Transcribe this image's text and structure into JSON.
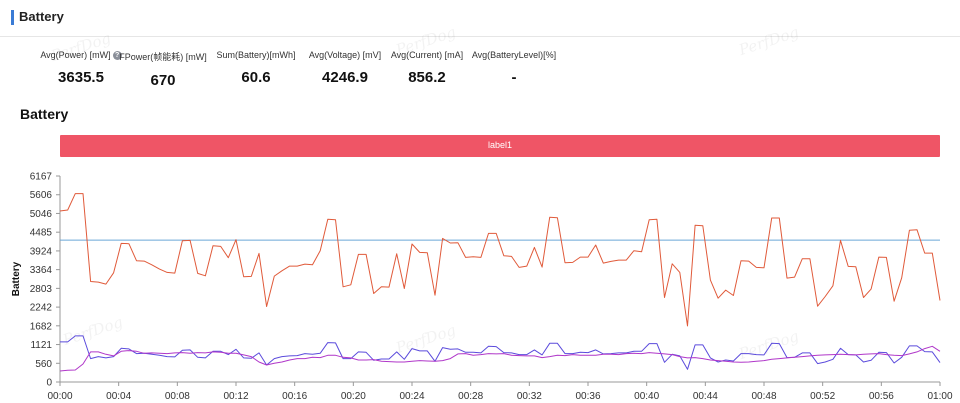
{
  "header": {
    "title": "Battery"
  },
  "stats": [
    {
      "label": "Avg(Power) [mW]",
      "value": "3635.5",
      "help": true
    },
    {
      "label": "FPower(帧能耗) [mW]",
      "value": "670",
      "help": false
    },
    {
      "label": "Sum(Battery)[mWh]",
      "value": "60.6",
      "help": false
    },
    {
      "label": "Avg(Voltage) [mV]",
      "value": "4246.9",
      "help": false
    },
    {
      "label": "Avg(Current) [mA]",
      "value": "856.2",
      "help": false
    },
    {
      "label": "Avg(BatteryLevel)[%]",
      "value": "-",
      "help": false
    }
  ],
  "help_glyph": "?",
  "watermark": "PerfDog",
  "chart_data": {
    "type": "line",
    "title": "Battery",
    "band_label": "label1",
    "xlabel": "",
    "ylabel": "Battery",
    "ylim": [
      0,
      6167
    ],
    "yticks": [
      0,
      560,
      1121,
      1682,
      2242,
      2803,
      3364,
      3924,
      4485,
      5046,
      5606,
      6167
    ],
    "xlim_seconds": [
      0,
      3600
    ],
    "xticks": [
      "00:00",
      "00:04",
      "00:08",
      "00:12",
      "00:16",
      "00:20",
      "00:24",
      "00:28",
      "00:32",
      "00:36",
      "00:40",
      "00:44",
      "00:48",
      "00:52",
      "00:56",
      "01:00"
    ],
    "grid": false,
    "series": [
      {
        "color": "#e05a3a",
        "values": [
          5120,
          5150,
          5640,
          5640,
          3010,
          2990,
          2930,
          3270,
          4150,
          4140,
          3630,
          3620,
          3510,
          3380,
          3280,
          3260,
          4230,
          4240,
          3250,
          3180,
          4080,
          4060,
          3720,
          4260,
          3150,
          3160,
          3850,
          2260,
          3170,
          3330,
          3470,
          3470,
          3530,
          3510,
          3930,
          4870,
          4860,
          2850,
          2910,
          3820,
          3820,
          2650,
          2850,
          2840,
          3840,
          2800,
          4130,
          3880,
          3870,
          2600,
          4300,
          4160,
          4170,
          3730,
          3750,
          3730,
          4450,
          4450,
          3780,
          3760,
          3430,
          3470,
          4030,
          3440,
          4930,
          4920,
          3570,
          3580,
          3740,
          3740,
          4100,
          3560,
          3610,
          3650,
          3650,
          3930,
          3900,
          4860,
          4870,
          2530,
          3540,
          3280,
          1680,
          4690,
          4680,
          3050,
          2510,
          2750,
          2590,
          3630,
          3620,
          3430,
          3420,
          4910,
          4910,
          3110,
          3140,
          3690,
          3690,
          2270,
          2560,
          2880,
          4240,
          3460,
          3450,
          2530,
          2780,
          3740,
          3730,
          2420,
          3120,
          4540,
          4560,
          3860,
          3860,
          2440
        ]
      },
      {
        "color": "#5b4bdc",
        "values": [
          1200,
          1200,
          1380,
          1380,
          700,
          760,
          720,
          760,
          1010,
          990,
          850,
          860,
          830,
          800,
          760,
          750,
          950,
          960,
          740,
          720,
          920,
          920,
          820,
          980,
          720,
          710,
          870,
          510,
          700,
          760,
          780,
          790,
          850,
          830,
          860,
          1180,
          1170,
          700,
          700,
          900,
          890,
          650,
          690,
          690,
          900,
          680,
          1000,
          930,
          930,
          620,
          1030,
          980,
          990,
          890,
          890,
          870,
          1070,
          1060,
          880,
          870,
          820,
          820,
          960,
          810,
          1160,
          1160,
          850,
          850,
          890,
          880,
          960,
          840,
          850,
          870,
          870,
          920,
          920,
          1150,
          1150,
          590,
          830,
          780,
          380,
          1110,
          1110,
          720,
          600,
          660,
          630,
          850,
          850,
          820,
          810,
          1160,
          1150,
          730,
          740,
          870,
          870,
          550,
          600,
          680,
          1010,
          820,
          810,
          600,
          650,
          890,
          880,
          570,
          740,
          1080,
          1080,
          910,
          900,
          580
        ]
      },
      {
        "color": "#b037c9",
        "values": [
          330,
          350,
          360,
          540,
          900,
          900,
          830,
          780,
          920,
          940,
          920,
          860,
          870,
          860,
          850,
          870,
          880,
          860,
          880,
          870,
          900,
          890,
          860,
          860,
          810,
          760,
          600,
          510,
          560,
          600,
          660,
          700,
          700,
          740,
          730,
          800,
          800,
          740,
          720,
          660,
          660,
          670,
          620,
          610,
          600,
          600,
          620,
          640,
          630,
          620,
          640,
          700,
          840,
          850,
          800,
          820,
          850,
          840,
          850,
          800,
          790,
          780,
          780,
          730,
          760,
          800,
          790,
          820,
          800,
          800,
          800,
          830,
          830,
          820,
          850,
          860,
          850,
          880,
          860,
          840,
          820,
          760,
          720,
          730,
          700,
          660,
          640,
          620,
          600,
          590,
          600,
          620,
          640,
          680,
          700,
          720,
          740,
          760,
          780,
          800,
          810,
          820,
          830,
          820,
          810,
          830,
          840,
          850,
          820,
          800,
          790,
          840,
          900,
          1000,
          1070,
          920
        ]
      }
    ],
    "hlines": [
      {
        "value": 4246.9,
        "color": "#6aa6d8"
      }
    ]
  }
}
